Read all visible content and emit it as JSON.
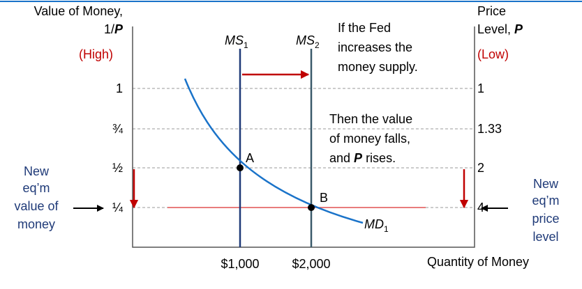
{
  "left_axis": {
    "title_line1": "Value of Money,",
    "title_line2_prefix": "1/",
    "title_line2_var": "P",
    "note": "(High)",
    "ticks": [
      "1",
      "¾",
      "½",
      "¼"
    ]
  },
  "right_axis": {
    "title_line1": "Price",
    "title_line2_prefix": "Level, ",
    "title_line2_var": "P",
    "note": "(Low)",
    "ticks": [
      "1",
      "1.33",
      "2",
      "4"
    ]
  },
  "x_axis": {
    "title": "Quantity of Money",
    "ticks": [
      "$1,000",
      "$2,000"
    ]
  },
  "curves": {
    "ms1": {
      "main": "MS",
      "sub": "1"
    },
    "ms2": {
      "main": "MS",
      "sub": "2"
    },
    "md": {
      "main": "MD",
      "sub": "1"
    }
  },
  "points": {
    "a": "A",
    "b": "B"
  },
  "text1": [
    "If the Fed",
    "increases the",
    "money supply."
  ],
  "text2": {
    "line1": "Then the value",
    "line2": "of money falls,",
    "line3_prefix": "and ",
    "line3_var": "P",
    "line3_suffix": " rises."
  },
  "left_note": [
    "New",
    "eq’m",
    "value of",
    "money"
  ],
  "right_note": [
    "New",
    "eq’m",
    "price",
    "level"
  ]
}
